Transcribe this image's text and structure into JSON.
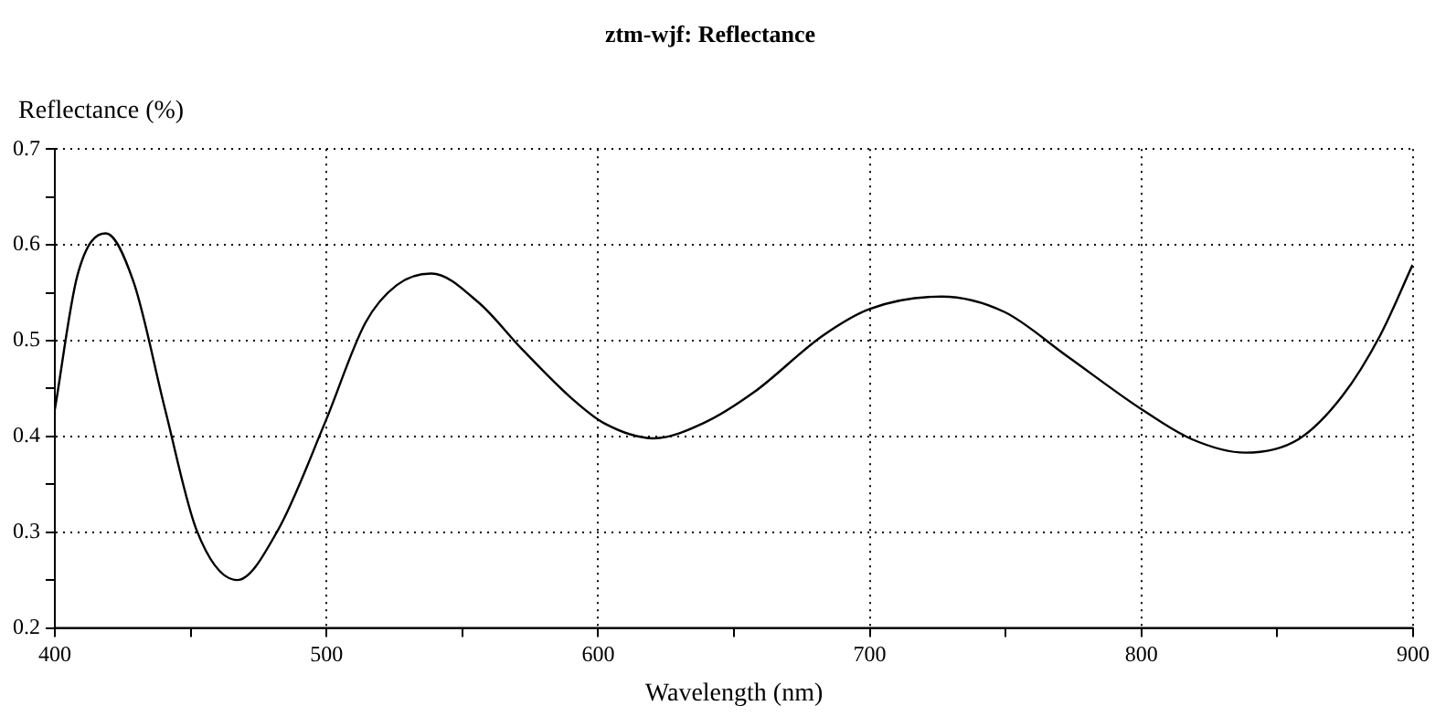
{
  "chart_data": {
    "type": "line",
    "title": "ztm-wjf: Reflectance",
    "xlabel": "Wavelength (nm)",
    "ylabel": "Reflectance (%)",
    "series": [
      {
        "color": "#000000",
        "x": [
          400,
          408.3,
          418.7,
          429,
          440.6,
          452.2,
          467.1,
          482.1,
          499.4,
          514.4,
          525.9,
          538.6,
          555.9,
          572,
          590.5,
          602,
          620.5,
          638.9,
          657.3,
          682.6,
          699.9,
          726.4,
          749.5,
          772.5,
          800.2,
          818.6,
          838.2,
          857.8,
          873.9,
          887.8,
          899.8
        ],
        "values": [
          0.428,
          0.568,
          0.612,
          0.561,
          0.428,
          0.302,
          0.25,
          0.302,
          0.414,
          0.519,
          0.558,
          0.57,
          0.54,
          0.491,
          0.439,
          0.414,
          0.398,
          0.414,
          0.446,
          0.505,
          0.533,
          0.546,
          0.53,
          0.484,
          0.428,
          0.397,
          0.383,
          0.397,
          0.442,
          0.505,
          0.579
        ]
      }
    ],
    "xlim": [
      400,
      900
    ],
    "xticks": [
      400,
      {
        "value": 450,
        "label": null
      },
      500,
      {
        "value": 550,
        "label": null
      },
      600,
      {
        "value": 650,
        "label": null
      },
      700,
      {
        "value": 750,
        "label": null
      },
      800,
      {
        "value": 850,
        "label": null
      },
      900
    ],
    "ylim": [
      0.2,
      0.7
    ],
    "yticks": [
      0.2,
      {
        "value": 0.25,
        "label": null
      },
      0.3,
      {
        "value": 0.35,
        "label": null
      },
      0.4,
      {
        "value": 0.45,
        "label": null
      },
      0.5,
      {
        "value": 0.55,
        "label": null
      },
      0.6,
      {
        "value": 0.65,
        "label": null
      },
      0.7
    ],
    "grid": true,
    "legend": false,
    "marker": "none",
    "line_style": "solid"
  }
}
